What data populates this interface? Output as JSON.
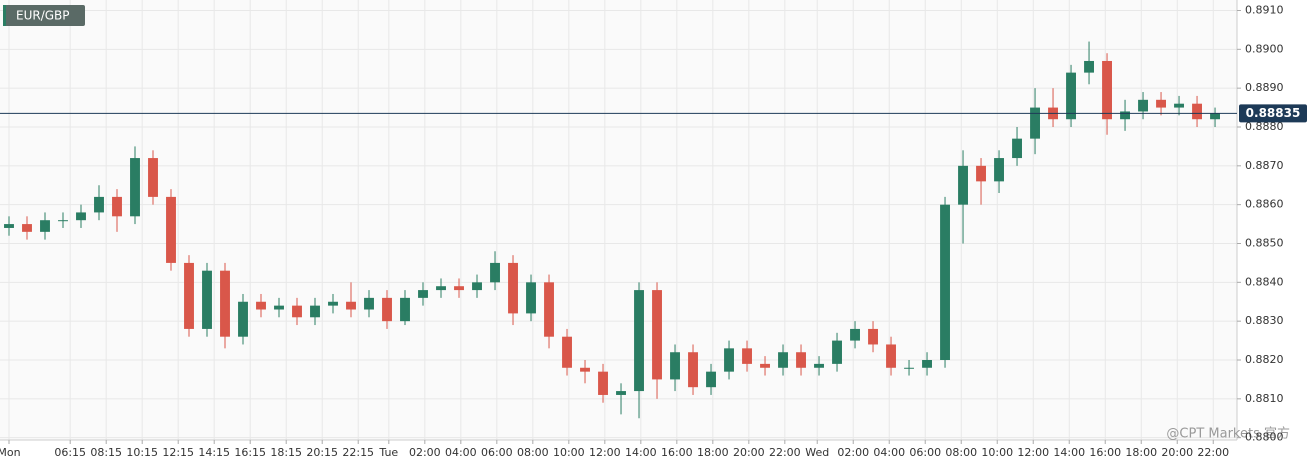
{
  "chart_data": {
    "type": "candlestick",
    "title": "EUR/GBP",
    "watermark": "@CPT Markets 官方",
    "x": [
      0.5,
      1.5,
      2.5,
      3.5,
      4.5,
      5.5,
      6.5,
      7.5,
      8.5,
      9.5,
      10.5,
      11.5,
      12.5,
      13.5,
      14.5,
      15.5,
      16.5,
      17.5,
      18.5,
      19.5,
      20.5,
      21.5,
      22.5,
      23.5,
      24.5,
      25.5,
      26.5,
      27.5,
      28.5,
      29.5,
      30.5,
      31.5,
      32.5,
      33.5,
      34.5,
      35.5,
      36.5,
      37.5,
      38.5,
      39.5,
      40.5,
      41.5,
      42.5,
      43.5,
      44.5,
      45.5,
      46.5,
      47.5,
      48.5,
      49.5,
      50.5,
      51.5,
      52.5,
      53.5,
      54.5,
      55.5,
      56.5,
      57.5,
      58.5,
      59.5,
      60.5,
      61.5,
      62.5,
      63.5,
      64.5,
      65.5,
      66.5,
      67.5
    ],
    "open": [
      0.8854,
      0.8855,
      0.8853,
      0.8856,
      0.8856,
      0.8858,
      0.8862,
      0.8857,
      0.8872,
      0.8862,
      0.8845,
      0.8828,
      0.8843,
      0.8826,
      0.8835,
      0.8833,
      0.8834,
      0.8831,
      0.8834,
      0.8835,
      0.8833,
      0.8836,
      0.883,
      0.8836,
      0.8838,
      0.8839,
      0.8838,
      0.884,
      0.8845,
      0.8832,
      0.884,
      0.8826,
      0.8818,
      0.8817,
      0.8811,
      0.8812,
      0.8838,
      0.8815,
      0.8822,
      0.8813,
      0.8817,
      0.8823,
      0.8819,
      0.8818,
      0.8822,
      0.8818,
      0.8819,
      0.8825,
      0.8828,
      0.8824,
      0.8818,
      0.8818,
      0.882,
      0.886,
      0.887,
      0.8866,
      0.8872,
      0.8877,
      0.8885,
      0.8882,
      0.8894,
      0.8897,
      0.8882,
      0.8884,
      0.8887,
      0.8885,
      0.8886,
      0.8882
    ],
    "high": [
      0.8857,
      0.8857,
      0.8858,
      0.8858,
      0.886,
      0.8865,
      0.8864,
      0.8875,
      0.8874,
      0.8864,
      0.8847,
      0.8845,
      0.8845,
      0.8837,
      0.8837,
      0.8836,
      0.8836,
      0.8836,
      0.8837,
      0.884,
      0.8838,
      0.8838,
      0.8838,
      0.884,
      0.8841,
      0.8841,
      0.8842,
      0.8848,
      0.8847,
      0.8842,
      0.8842,
      0.8828,
      0.882,
      0.8819,
      0.8814,
      0.884,
      0.884,
      0.8824,
      0.8824,
      0.8819,
      0.8825,
      0.8825,
      0.8821,
      0.8824,
      0.8824,
      0.8821,
      0.8827,
      0.883,
      0.883,
      0.8826,
      0.882,
      0.8822,
      0.8862,
      0.8874,
      0.8872,
      0.8874,
      0.888,
      0.889,
      0.889,
      0.8896,
      0.8902,
      0.8899,
      0.8887,
      0.8889,
      0.8889,
      0.8888,
      0.8888,
      0.8885
    ],
    "low": [
      0.8852,
      0.8851,
      0.8851,
      0.8854,
      0.8854,
      0.8856,
      0.8853,
      0.8855,
      0.886,
      0.8843,
      0.8826,
      0.8826,
      0.8823,
      0.8824,
      0.8831,
      0.8831,
      0.8829,
      0.8829,
      0.8832,
      0.8831,
      0.8831,
      0.8828,
      0.8829,
      0.8834,
      0.8836,
      0.8836,
      0.8836,
      0.8838,
      0.8829,
      0.883,
      0.8823,
      0.8816,
      0.8814,
      0.8809,
      0.8806,
      0.8805,
      0.881,
      0.8812,
      0.8811,
      0.8811,
      0.8815,
      0.8817,
      0.8816,
      0.8816,
      0.8816,
      0.8816,
      0.8817,
      0.8823,
      0.8822,
      0.8816,
      0.8816,
      0.8816,
      0.8818,
      0.885,
      0.886,
      0.8863,
      0.887,
      0.8873,
      0.888,
      0.888,
      0.8891,
      0.8878,
      0.8879,
      0.8882,
      0.8883,
      0.8883,
      0.888,
      0.888
    ],
    "close": [
      0.8855,
      0.8853,
      0.8856,
      0.8856,
      0.8858,
      0.8862,
      0.8857,
      0.8872,
      0.8862,
      0.8845,
      0.8828,
      0.8843,
      0.8826,
      0.8835,
      0.8833,
      0.8834,
      0.8831,
      0.8834,
      0.8835,
      0.8833,
      0.8836,
      0.883,
      0.8836,
      0.8838,
      0.8839,
      0.8838,
      0.884,
      0.8845,
      0.8832,
      0.884,
      0.8826,
      0.8818,
      0.8817,
      0.8811,
      0.8812,
      0.8838,
      0.8815,
      0.8822,
      0.8813,
      0.8817,
      0.8823,
      0.8819,
      0.8818,
      0.8822,
      0.8818,
      0.8819,
      0.8825,
      0.8828,
      0.8824,
      0.8818,
      0.8818,
      0.882,
      0.886,
      0.887,
      0.8866,
      0.8872,
      0.8877,
      0.8885,
      0.8882,
      0.8894,
      0.8897,
      0.8882,
      0.8884,
      0.8887,
      0.8885,
      0.8886,
      0.8882,
      0.88835
    ],
    "up_color": "#2a7d63",
    "down_color": "#d9574a",
    "last_price": 0.88835,
    "last_price_color": "#1d3a57",
    "xlim": [
      0,
      68.72
    ],
    "ylim": [
      0.87994,
      0.89127
    ],
    "grid": true,
    "xticks": [
      {
        "value": 0.5,
        "label": "Mon"
      },
      {
        "value": 3.9,
        "label": "06:15"
      },
      {
        "value": 5.9,
        "label": "08:15"
      },
      {
        "value": 7.9,
        "label": "10:15"
      },
      {
        "value": 9.9,
        "label": "12:15"
      },
      {
        "value": 11.9,
        "label": "14:15"
      },
      {
        "value": 13.9,
        "label": "16:15"
      },
      {
        "value": 15.9,
        "label": "18:15"
      },
      {
        "value": 17.9,
        "label": "20:15"
      },
      {
        "value": 19.9,
        "label": "22:15"
      },
      {
        "value": 21.6,
        "label": "Tue"
      },
      {
        "value": 23.6,
        "label": "02:00"
      },
      {
        "value": 25.6,
        "label": "04:00"
      },
      {
        "value": 27.6,
        "label": "06:00"
      },
      {
        "value": 29.6,
        "label": "08:00"
      },
      {
        "value": 31.6,
        "label": "10:00"
      },
      {
        "value": 33.6,
        "label": "12:00"
      },
      {
        "value": 35.6,
        "label": "14:00"
      },
      {
        "value": 37.6,
        "label": "16:00"
      },
      {
        "value": 39.6,
        "label": "18:00"
      },
      {
        "value": 41.6,
        "label": "20:00"
      },
      {
        "value": 43.6,
        "label": "22:00"
      },
      {
        "value": 45.4,
        "label": "Wed"
      },
      {
        "value": 47.4,
        "label": "02:00"
      },
      {
        "value": 49.4,
        "label": "04:00"
      },
      {
        "value": 51.4,
        "label": "06:00"
      },
      {
        "value": 53.4,
        "label": "08:00"
      },
      {
        "value": 55.4,
        "label": "10:00"
      },
      {
        "value": 57.4,
        "label": "12:00"
      },
      {
        "value": 59.4,
        "label": "14:00"
      },
      {
        "value": 61.4,
        "label": "16:00"
      },
      {
        "value": 63.4,
        "label": "18:00"
      },
      {
        "value": 65.4,
        "label": "20:00"
      },
      {
        "value": 67.4,
        "label": "22:00"
      }
    ],
    "yticks": [
      {
        "value": 0.88,
        "label": "0.8800"
      },
      {
        "value": 0.881,
        "label": "0.8810"
      },
      {
        "value": 0.882,
        "label": "0.8820"
      },
      {
        "value": 0.883,
        "label": "0.8830"
      },
      {
        "value": 0.884,
        "label": "0.8840"
      },
      {
        "value": 0.885,
        "label": "0.8850"
      },
      {
        "value": 0.886,
        "label": "0.8860"
      },
      {
        "value": 0.887,
        "label": "0.8870"
      },
      {
        "value": 0.888,
        "label": "0.8880"
      },
      {
        "value": 0.889,
        "label": "0.8890"
      },
      {
        "value": 0.89,
        "label": "0.8900"
      },
      {
        "value": 0.891,
        "label": "0.8910"
      }
    ]
  }
}
